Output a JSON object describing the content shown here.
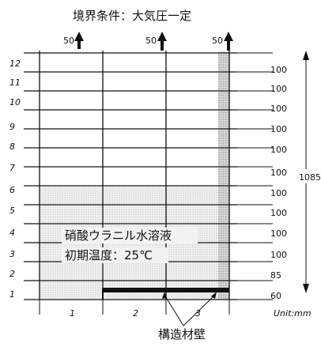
{
  "title": "境界条件：大気圧一定",
  "top_inflow": {
    "values": [
      "50",
      "50",
      "50"
    ]
  },
  "rows": {
    "labels": [
      "12",
      "11",
      "10",
      "9",
      "8",
      "7",
      "6",
      "5",
      "4",
      "3",
      "2",
      "1"
    ],
    "heights": [
      "100",
      "100",
      "100",
      "100",
      "100",
      "100",
      "100",
      "100",
      "100",
      "100",
      "85",
      "60"
    ]
  },
  "columns": [
    "1",
    "2",
    "3"
  ],
  "total_height": "1085",
  "unit": "Unit:mm",
  "liquid": {
    "name": "硝酸ウラニル水溶液",
    "initial_temp": "初期温度：25℃"
  },
  "wall_label": "構造材壁",
  "colors": {
    "liquid_fill": "#ebebeb",
    "wall_fill": "#d4d4d4",
    "line": "#111111"
  }
}
